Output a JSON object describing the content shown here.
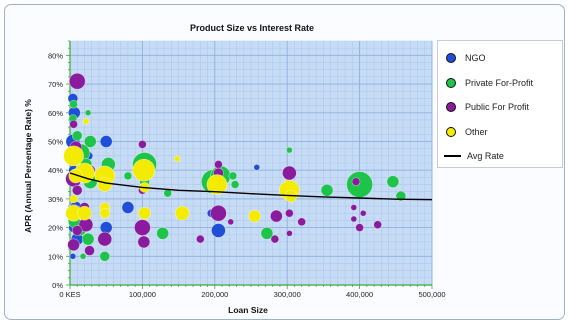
{
  "chart_data": {
    "type": "scatter",
    "title": "Product Size vs Interest Rate",
    "xlabel": "Loan Size",
    "ylabel": "APR (Annual Percentage Rate) %",
    "x_ticks": [
      "0 KES",
      "100,000",
      "200,000",
      "300,000",
      "400,000",
      "500,000"
    ],
    "y_ticks": [
      "0%",
      "10%",
      "20%",
      "30%",
      "40%",
      "50%",
      "60%",
      "70%",
      "80%"
    ],
    "xlim": [
      0,
      500000
    ],
    "ylim": [
      0,
      0.85
    ],
    "grid": true,
    "legend_position": "right",
    "series": [
      {
        "name": "NGO",
        "color": "#1f4fd6",
        "points": [
          {
            "x": 4000,
            "y": 0.65,
            "size": 5
          },
          {
            "x": 6000,
            "y": 0.6,
            "size": 6
          },
          {
            "x": 4000,
            "y": 0.5,
            "size": 7
          },
          {
            "x": 6000,
            "y": 0.44,
            "size": 6
          },
          {
            "x": 12000,
            "y": 0.47,
            "size": 5
          },
          {
            "x": 5000,
            "y": 0.4,
            "size": 5
          },
          {
            "x": 8000,
            "y": 0.36,
            "size": 5
          },
          {
            "x": 4000,
            "y": 0.3,
            "size": 4
          },
          {
            "x": 8000,
            "y": 0.27,
            "size": 6
          },
          {
            "x": 5000,
            "y": 0.2,
            "size": 5
          },
          {
            "x": 10000,
            "y": 0.16,
            "size": 6
          },
          {
            "x": 4000,
            "y": 0.1,
            "size": 3
          },
          {
            "x": 26000,
            "y": 0.45,
            "size": 4
          },
          {
            "x": 50000,
            "y": 0.5,
            "size": 6
          },
          {
            "x": 50000,
            "y": 0.2,
            "size": 6
          },
          {
            "x": 80000,
            "y": 0.27,
            "size": 6
          },
          {
            "x": 195000,
            "y": 0.25,
            "size": 4
          },
          {
            "x": 205000,
            "y": 0.19,
            "size": 7
          },
          {
            "x": 258000,
            "y": 0.41,
            "size": 3
          }
        ]
      },
      {
        "name": "Private For-Profit",
        "color": "#1ec44a",
        "points": [
          {
            "x": 5000,
            "y": 0.63,
            "size": 4
          },
          {
            "x": 4000,
            "y": 0.58,
            "size": 4
          },
          {
            "x": 25000,
            "y": 0.6,
            "size": 3
          },
          {
            "x": 10000,
            "y": 0.52,
            "size": 5
          },
          {
            "x": 28000,
            "y": 0.5,
            "size": 6
          },
          {
            "x": 15000,
            "y": 0.46,
            "size": 9
          },
          {
            "x": 22000,
            "y": 0.42,
            "size": 6
          },
          {
            "x": 28000,
            "y": 0.36,
            "size": 7
          },
          {
            "x": 6000,
            "y": 0.22,
            "size": 6
          },
          {
            "x": 15000,
            "y": 0.19,
            "size": 5
          },
          {
            "x": 25000,
            "y": 0.16,
            "size": 6
          },
          {
            "x": 48000,
            "y": 0.1,
            "size": 5
          },
          {
            "x": 18000,
            "y": 0.1,
            "size": 3
          },
          {
            "x": 53000,
            "y": 0.42,
            "size": 7
          },
          {
            "x": 103000,
            "y": 0.42,
            "size": 12
          },
          {
            "x": 103000,
            "y": 0.36,
            "size": 5
          },
          {
            "x": 80000,
            "y": 0.38,
            "size": 4
          },
          {
            "x": 135000,
            "y": 0.32,
            "size": 4
          },
          {
            "x": 128000,
            "y": 0.18,
            "size": 6
          },
          {
            "x": 198000,
            "y": 0.36,
            "size": 12
          },
          {
            "x": 208000,
            "y": 0.38,
            "size": 10
          },
          {
            "x": 225000,
            "y": 0.38,
            "size": 4
          },
          {
            "x": 228000,
            "y": 0.35,
            "size": 4
          },
          {
            "x": 272000,
            "y": 0.18,
            "size": 6
          },
          {
            "x": 303000,
            "y": 0.47,
            "size": 3
          },
          {
            "x": 303000,
            "y": 0.34,
            "size": 4
          },
          {
            "x": 355000,
            "y": 0.33,
            "size": 6
          },
          {
            "x": 400000,
            "y": 0.35,
            "size": 13
          },
          {
            "x": 446000,
            "y": 0.36,
            "size": 6
          },
          {
            "x": 457000,
            "y": 0.31,
            "size": 5
          }
        ]
      },
      {
        "name": "Public For Profit",
        "color": "#8a1a9e",
        "points": [
          {
            "x": 10000,
            "y": 0.71,
            "size": 8
          },
          {
            "x": 5000,
            "y": 0.56,
            "size": 4
          },
          {
            "x": 8000,
            "y": 0.48,
            "size": 6
          },
          {
            "x": 5000,
            "y": 0.37,
            "size": 8
          },
          {
            "x": 10000,
            "y": 0.33,
            "size": 5
          },
          {
            "x": 5000,
            "y": 0.26,
            "size": 6
          },
          {
            "x": 20000,
            "y": 0.27,
            "size": 5
          },
          {
            "x": 22000,
            "y": 0.21,
            "size": 7
          },
          {
            "x": 10000,
            "y": 0.19,
            "size": 5
          },
          {
            "x": 5000,
            "y": 0.14,
            "size": 6
          },
          {
            "x": 27000,
            "y": 0.12,
            "size": 5
          },
          {
            "x": 28000,
            "y": 0.4,
            "size": 5
          },
          {
            "x": 48000,
            "y": 0.16,
            "size": 7
          },
          {
            "x": 100000,
            "y": 0.49,
            "size": 4
          },
          {
            "x": 100000,
            "y": 0.33,
            "size": 4
          },
          {
            "x": 100000,
            "y": 0.2,
            "size": 8
          },
          {
            "x": 102000,
            "y": 0.15,
            "size": 6
          },
          {
            "x": 180000,
            "y": 0.16,
            "size": 4
          },
          {
            "x": 205000,
            "y": 0.42,
            "size": 4
          },
          {
            "x": 205000,
            "y": 0.39,
            "size": 5
          },
          {
            "x": 205000,
            "y": 0.25,
            "size": 8
          },
          {
            "x": 222000,
            "y": 0.22,
            "size": 3
          },
          {
            "x": 285000,
            "y": 0.24,
            "size": 6
          },
          {
            "x": 303000,
            "y": 0.39,
            "size": 7
          },
          {
            "x": 303000,
            "y": 0.25,
            "size": 4
          },
          {
            "x": 303000,
            "y": 0.18,
            "size": 3
          },
          {
            "x": 320000,
            "y": 0.22,
            "size": 4
          },
          {
            "x": 283000,
            "y": 0.16,
            "size": 4
          },
          {
            "x": 392000,
            "y": 0.27,
            "size": 3
          },
          {
            "x": 392000,
            "y": 0.23,
            "size": 3
          },
          {
            "x": 405000,
            "y": 0.25,
            "size": 3
          },
          {
            "x": 400000,
            "y": 0.2,
            "size": 4
          },
          {
            "x": 425000,
            "y": 0.21,
            "size": 4
          },
          {
            "x": 395000,
            "y": 0.36,
            "size": 4
          }
        ]
      },
      {
        "name": "Other",
        "color": "#f3ec00",
        "points": [
          {
            "x": 5000,
            "y": 0.45,
            "size": 10
          },
          {
            "x": 20000,
            "y": 0.39,
            "size": 10
          },
          {
            "x": 8000,
            "y": 0.38,
            "size": 7
          },
          {
            "x": 48000,
            "y": 0.38,
            "size": 10
          },
          {
            "x": 48000,
            "y": 0.35,
            "size": 7
          },
          {
            "x": 5000,
            "y": 0.3,
            "size": 4
          },
          {
            "x": 5000,
            "y": 0.25,
            "size": 8
          },
          {
            "x": 20000,
            "y": 0.25,
            "size": 7
          },
          {
            "x": 48000,
            "y": 0.27,
            "size": 5
          },
          {
            "x": 48000,
            "y": 0.25,
            "size": 5
          },
          {
            "x": 22000,
            "y": 0.57,
            "size": 3
          },
          {
            "x": 102000,
            "y": 0.4,
            "size": 11
          },
          {
            "x": 103000,
            "y": 0.34,
            "size": 5
          },
          {
            "x": 103000,
            "y": 0.25,
            "size": 6
          },
          {
            "x": 155000,
            "y": 0.25,
            "size": 7
          },
          {
            "x": 148000,
            "y": 0.44,
            "size": 3
          },
          {
            "x": 203000,
            "y": 0.35,
            "size": 10
          },
          {
            "x": 255000,
            "y": 0.24,
            "size": 6
          },
          {
            "x": 303000,
            "y": 0.33,
            "size": 10
          },
          {
            "x": 305000,
            "y": 0.31,
            "size": 6
          }
        ]
      }
    ],
    "avg_rate": {
      "name": "Avg Rate",
      "color": "#000000",
      "x": [
        0,
        25000,
        50000,
        100000,
        150000,
        200000,
        250000,
        300000,
        350000,
        400000,
        450000,
        500000
      ],
      "y": [
        0.39,
        0.37,
        0.355,
        0.34,
        0.33,
        0.325,
        0.318,
        0.312,
        0.307,
        0.303,
        0.299,
        0.297
      ]
    }
  }
}
